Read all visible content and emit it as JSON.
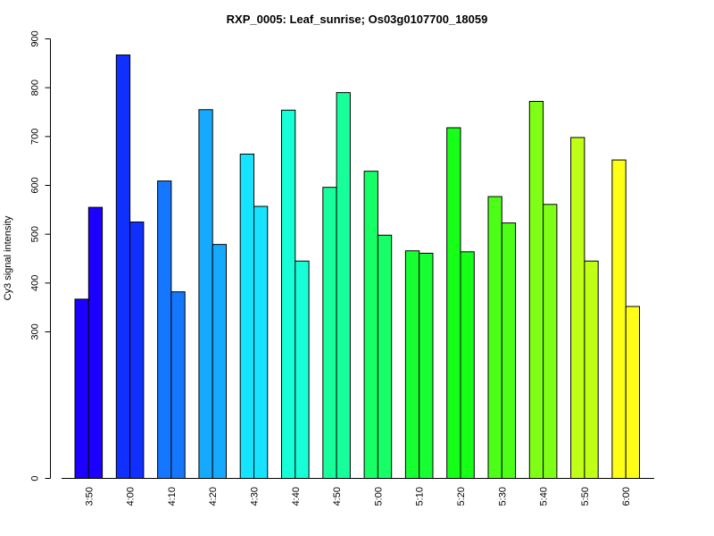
{
  "chart_data": {
    "type": "bar",
    "title": "RXP_0005: Leaf_sunrise; Os03g0107700_18059",
    "xlabel": "",
    "ylabel": "Cy3 signal intensity",
    "categories": [
      "3:50",
      "4:00",
      "4:10",
      "4:20",
      "4:30",
      "4:40",
      "4:50",
      "5:00",
      "5:10",
      "5:20",
      "5:30",
      "5:40",
      "5:50",
      "6:00"
    ],
    "colors": [
      "#1b00ff",
      "#1030ff",
      "#1577ff",
      "#16aaff",
      "#16e3ff",
      "#16ffd8",
      "#16ff9a",
      "#16ff66",
      "#16ff33",
      "#16ff16",
      "#4dff16",
      "#80ff16",
      "#c0ff16",
      "#ffff16"
    ],
    "series": [
      {
        "values": [
          367,
          867,
          609,
          755,
          664,
          754,
          596,
          629,
          466,
          718,
          577,
          772,
          698,
          652
        ]
      },
      {
        "values": [
          555,
          525,
          382,
          479,
          557,
          445,
          790,
          498,
          461,
          464,
          523,
          561,
          445,
          352
        ]
      }
    ],
    "yticks": [
      0,
      300,
      400,
      500,
      600,
      700,
      800,
      900
    ],
    "ylim": [
      0,
      900
    ]
  }
}
